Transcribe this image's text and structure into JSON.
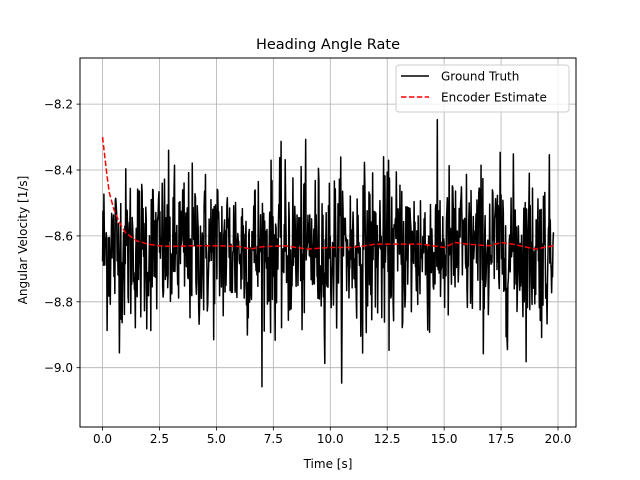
{
  "chart_data": {
    "type": "line",
    "title": "Heading Angle Rate",
    "xlabel": "Time [s]",
    "ylabel": "Angular Velocity [1/s]",
    "xlim": [
      -0.99,
      20.79
    ],
    "ylim": [
      -9.18,
      -8.06
    ],
    "xticks": [
      0.0,
      2.5,
      5.0,
      7.5,
      10.0,
      12.5,
      15.0,
      17.5,
      20.0
    ],
    "xtick_labels": [
      "0.0",
      "2.5",
      "5.0",
      "7.5",
      "10.0",
      "12.5",
      "15.0",
      "17.5",
      "20.0"
    ],
    "yticks": [
      -9.0,
      -8.8,
      -8.6,
      -8.4,
      -8.2
    ],
    "ytick_labels": [
      "−9.0",
      "−8.8",
      "−8.6",
      "−8.4",
      "−8.2"
    ],
    "grid": true,
    "legend_position": "top-right",
    "series": [
      {
        "name": "Ground Truth",
        "color": "#000000",
        "style": "solid",
        "noise": {
          "t_start": 0.0,
          "t_end": 19.8,
          "dt": 0.02,
          "mean": -8.64,
          "std": 0.12,
          "min": -9.13,
          "max": -8.17
        }
      },
      {
        "name": "Encoder Estimate",
        "color": "#ff0000",
        "style": "dashed",
        "x": [
          0.0,
          0.1,
          0.2,
          0.3,
          0.5,
          0.75,
          1.0,
          1.5,
          2.0,
          2.5,
          3.0,
          4.0,
          5.0,
          6.0,
          6.5,
          7.0,
          8.0,
          9.0,
          10.0,
          11.0,
          12.0,
          13.0,
          14.0,
          15.0,
          15.5,
          16.0,
          17.0,
          17.5,
          18.0,
          19.0,
          19.8
        ],
        "y": [
          -8.3,
          -8.36,
          -8.42,
          -8.47,
          -8.52,
          -8.56,
          -8.59,
          -8.615,
          -8.625,
          -8.63,
          -8.632,
          -8.63,
          -8.63,
          -8.632,
          -8.64,
          -8.633,
          -8.63,
          -8.64,
          -8.635,
          -8.635,
          -8.625,
          -8.625,
          -8.625,
          -8.635,
          -8.62,
          -8.625,
          -8.63,
          -8.62,
          -8.625,
          -8.64,
          -8.63
        ]
      }
    ]
  }
}
